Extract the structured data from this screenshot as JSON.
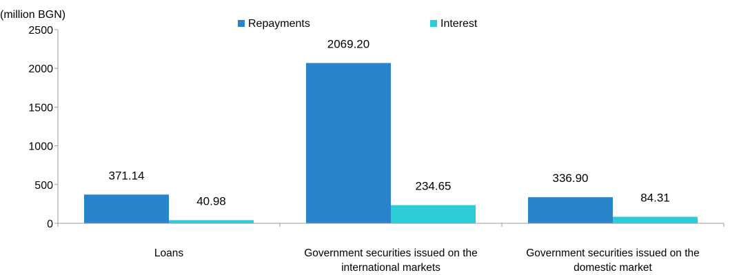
{
  "chart_data": {
    "type": "bar",
    "unit_label": "(million BGN)",
    "categories": [
      [
        "Loans"
      ],
      [
        "Government securities issued on the",
        "international markets"
      ],
      [
        "Government securities issued on the",
        "domestic market"
      ]
    ],
    "series": [
      {
        "name": "Repayments",
        "color": "#2A84C9",
        "values": [
          371.14,
          2069.2,
          336.9
        ],
        "labels": [
          "371.14",
          "2069.20",
          "336.90"
        ]
      },
      {
        "name": "Interest",
        "color": "#2CCCD6",
        "values": [
          40.98,
          234.65,
          84.31
        ],
        "labels": [
          "40.98",
          "234.65",
          "84.31"
        ]
      }
    ],
    "ylim": [
      0,
      2500
    ],
    "yticks": [
      "0",
      "500",
      "1000",
      "1500",
      "2000",
      "2500"
    ],
    "legend_position": "top",
    "grid": false
  }
}
